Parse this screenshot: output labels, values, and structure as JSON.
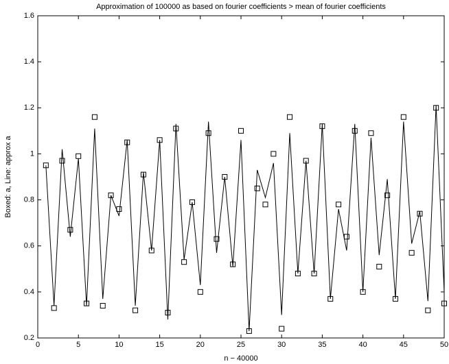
{
  "chart_data": {
    "type": "line",
    "title": "Approximation of 100000 as based on fourier coefficients > mean of fourier coefficients",
    "xlabel": "n − 40000",
    "ylabel": "Boxed: a, Line: approx a",
    "x": [
      1,
      2,
      3,
      4,
      5,
      6,
      7,
      8,
      9,
      10,
      11,
      12,
      13,
      14,
      15,
      16,
      17,
      18,
      19,
      20,
      21,
      22,
      23,
      24,
      25,
      26,
      27,
      28,
      29,
      30,
      31,
      32,
      33,
      34,
      35,
      36,
      37,
      38,
      39,
      40,
      41,
      42,
      43,
      44,
      45,
      46,
      47,
      48,
      49,
      50
    ],
    "series": [
      {
        "style": "markers",
        "color": "#000000",
        "values": [
          0.95,
          0.33,
          0.97,
          0.67,
          0.99,
          0.35,
          1.16,
          0.34,
          0.82,
          0.76,
          1.05,
          0.32,
          0.91,
          0.58,
          1.06,
          0.31,
          1.11,
          0.53,
          0.79,
          0.4,
          1.09,
          0.63,
          0.9,
          0.52,
          1.1,
          0.23,
          0.85,
          0.78,
          1.0,
          0.24,
          1.16,
          0.48,
          0.97,
          0.48,
          1.12,
          0.37,
          0.78,
          0.64,
          1.1,
          0.4,
          1.09,
          0.51,
          0.82,
          0.37,
          1.16,
          0.57,
          0.74,
          0.32,
          1.2,
          0.35
        ]
      },
      {
        "style": "line",
        "color": "#000000",
        "values": [
          0.95,
          0.34,
          1.02,
          0.64,
          0.98,
          0.34,
          1.11,
          0.37,
          0.82,
          0.73,
          1.06,
          0.34,
          0.92,
          0.58,
          1.06,
          0.28,
          1.13,
          0.54,
          0.79,
          0.43,
          1.14,
          0.57,
          0.9,
          0.51,
          1.06,
          0.23,
          0.93,
          0.81,
          0.96,
          0.3,
          1.09,
          0.48,
          0.97,
          0.48,
          1.13,
          0.37,
          0.76,
          0.58,
          1.13,
          0.4,
          1.07,
          0.56,
          0.89,
          0.37,
          1.14,
          0.61,
          0.75,
          0.36,
          1.21,
          0.4
        ]
      }
    ],
    "xlim": [
      0,
      50
    ],
    "xticks": [
      0,
      5,
      10,
      15,
      20,
      25,
      30,
      35,
      40,
      45,
      50
    ],
    "ylim": [
      0.2,
      1.6
    ],
    "yticks": [
      0.2,
      0.4,
      0.6,
      0.8,
      1,
      1.2,
      1.4,
      1.6
    ],
    "grid": false
  }
}
